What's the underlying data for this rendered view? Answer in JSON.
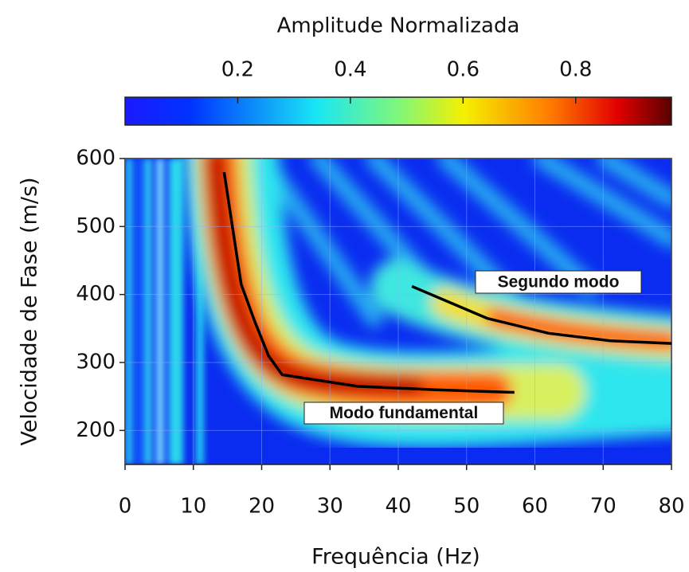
{
  "chart_data": {
    "type": "line",
    "title": "Amplitude Normalizada",
    "x_label": "Frequência (Hz)",
    "y_label": "Velocidade de Fase (m/s)",
    "xlim": [
      0,
      80
    ],
    "xticks": [
      0,
      10,
      20,
      30,
      40,
      50,
      60,
      70,
      80
    ],
    "ylim": [
      150,
      600
    ],
    "yticks": [
      200,
      300,
      400,
      500,
      600
    ],
    "colorbar": {
      "clim": [
        0,
        0.97
      ],
      "ticks": [
        0.2,
        0.4,
        0.6,
        0.8
      ],
      "colormap": "jet"
    },
    "series": [
      {
        "color": "#000000",
        "x": [
          14.5,
          17,
          19,
          21,
          23,
          34,
          45,
          57
        ],
        "values": [
          580,
          415,
          360,
          310,
          282,
          265,
          260,
          256
        ]
      },
      {
        "color": "#000000",
        "x": [
          42,
          53,
          62,
          71,
          80
        ],
        "values": [
          412,
          365,
          343,
          332,
          328
        ]
      }
    ],
    "annotations": [
      {
        "text": "Modo fundamental"
      },
      {
        "text": "Segundo modo"
      }
    ]
  }
}
